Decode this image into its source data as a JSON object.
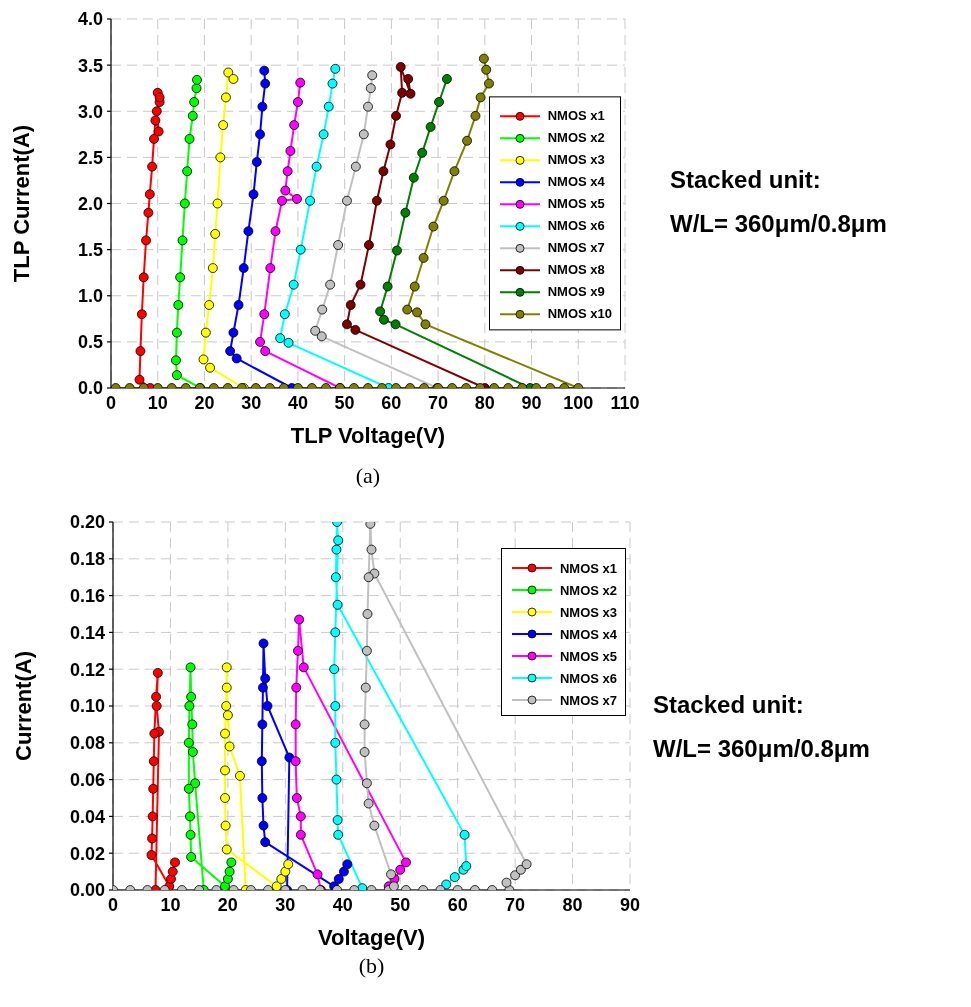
{
  "chart_data": [
    {
      "type": "line",
      "xlabel": "TLP Voltage(V)",
      "ylabel": "TLP Current(A)",
      "xlim": [
        0,
        110
      ],
      "xticks": [
        0,
        10,
        20,
        30,
        40,
        50,
        60,
        70,
        80,
        90,
        100,
        110
      ],
      "ylim": [
        0,
        4
      ],
      "yticks": [
        {
          "value": 0,
          "label": "0.0"
        },
        {
          "value": 0.5,
          "label": "0.5"
        },
        {
          "value": 1,
          "label": "1.0"
        },
        {
          "value": 1.5,
          "label": "1.5"
        },
        {
          "value": 2,
          "label": "2.0"
        },
        {
          "value": 2.5,
          "label": "2.5"
        },
        {
          "value": 3,
          "label": "3.0"
        },
        {
          "value": 3.5,
          "label": "3.5"
        },
        {
          "value": 4,
          "label": "4.0"
        }
      ],
      "grid": true,
      "legend": "right",
      "marker": "circle",
      "line_style": "solid",
      "annotations": [
        "Stacked unit:",
        "W/L= 360μm/0.8μm",
        "(a)"
      ],
      "series": [
        {
          "name": "NMOS x1",
          "color": "#ff0000",
          "x": [
            8.4,
            6.1,
            6.3,
            6.6,
            7,
            7.5,
            8,
            8.3,
            8.8,
            9.2,
            9.5,
            10.2,
            9.8,
            10.4,
            10,
            10.4
          ],
          "values": [
            0,
            0.09,
            0.4,
            0.8,
            1.2,
            1.6,
            1.9,
            2.1,
            2.4,
            2.7,
            2.9,
            2.78,
            3,
            3.1,
            3.2,
            3.15
          ]
        },
        {
          "name": "NMOS x2",
          "color": "#00ff00",
          "x": [
            19.1,
            14.1,
            13.9,
            14.1,
            14.4,
            14.8,
            15.3,
            15.8,
            16.3,
            16.8,
            17.5,
            17.8,
            18.3,
            18.4
          ],
          "values": [
            0,
            0.14,
            0.3,
            0.6,
            0.9,
            1.2,
            1.6,
            2,
            2.35,
            2.7,
            2.95,
            3.1,
            3.25,
            3.34
          ]
        },
        {
          "name": "NMOS x3",
          "color": "#ffff00",
          "x": [
            28.4,
            21.2,
            19.8,
            20.3,
            21,
            21.8,
            22.3,
            22.8,
            23.4,
            24,
            24.6,
            25.1,
            26.2
          ],
          "values": [
            0,
            0.22,
            0.31,
            0.6,
            0.9,
            1.3,
            1.67,
            2,
            2.5,
            2.85,
            3.15,
            3.42,
            3.35
          ]
        },
        {
          "name": "NMOS x4",
          "color": "#0000ff",
          "x": [
            38.7,
            26.9,
            25.5,
            26.2,
            27.3,
            28.4,
            29.4,
            30.5,
            31.2,
            31.9,
            32.4,
            33,
            32.8
          ],
          "values": [
            0,
            0.32,
            0.4,
            0.6,
            0.9,
            1.3,
            1.7,
            2.1,
            2.45,
            2.75,
            3.05,
            3.3,
            3.44
          ]
        },
        {
          "name": "NMOS x5",
          "color": "#ff00ff",
          "x": [
            49,
            33,
            31.9,
            32.8,
            34.1,
            35.2,
            36.6,
            39.8,
            37.3,
            37.8,
            38.4,
            39.2,
            40,
            40.5
          ],
          "values": [
            0,
            0.4,
            0.5,
            0.8,
            1.3,
            1.7,
            2.03,
            2.05,
            2.14,
            2.35,
            2.57,
            2.85,
            3.1,
            3.31
          ]
        },
        {
          "name": "NMOS x6",
          "color": "#00ffff",
          "x": [
            59.4,
            38,
            36.2,
            37.2,
            39.1,
            40.6,
            42.6,
            44,
            45.5,
            46.6,
            47.4,
            48
          ],
          "values": [
            0,
            0.49,
            0.54,
            0.8,
            1.12,
            1.5,
            2.03,
            2.4,
            2.75,
            3.05,
            3.3,
            3.46
          ]
        },
        {
          "name": "NMOS x7",
          "color": "#c0c0c0",
          "x": [
            69.8,
            45.1,
            43.7,
            45.2,
            46.9,
            48.6,
            50.5,
            52.4,
            54.1,
            55,
            55.6,
            55.9
          ],
          "values": [
            0,
            0.56,
            0.62,
            0.85,
            1.12,
            1.55,
            2.03,
            2.4,
            2.75,
            3.05,
            3.25,
            3.39
          ]
        },
        {
          "name": "NMOS x8",
          "color": "#800000",
          "x": [
            80,
            52.3,
            50.5,
            51.3,
            53.4,
            55.2,
            56.9,
            58.3,
            59.8,
            61,
            62.3,
            62,
            64.1,
            63.6
          ],
          "values": [
            0,
            0.63,
            0.69,
            0.9,
            1.12,
            1.55,
            2.03,
            2.35,
            2.64,
            2.95,
            3.2,
            3.48,
            3.19,
            3.35
          ]
        },
        {
          "name": "NMOS x9",
          "color": "#008000",
          "x": [
            89.7,
            60.9,
            58.4,
            57.6,
            59.2,
            61.2,
            63,
            64.8,
            66.6,
            68.4,
            70.2,
            71.9
          ],
          "values": [
            0,
            0.69,
            0.74,
            0.83,
            1.1,
            1.49,
            1.9,
            2.28,
            2.55,
            2.83,
            3.1,
            3.35
          ]
        },
        {
          "name": "NMOS x10",
          "color": "#808000",
          "x": [
            1,
            4,
            7,
            10,
            13,
            16,
            19,
            22,
            25,
            28,
            31,
            34,
            37,
            40,
            43,
            46,
            49,
            52,
            55,
            58,
            61,
            64,
            67,
            70,
            73,
            76,
            79,
            82,
            85,
            88,
            91,
            94,
            97,
            100,
            67.3,
            65.5,
            63.4,
            65,
            66.9,
            69,
            71.2,
            73.5,
            76.2,
            78,
            79.1,
            80.9,
            80.3,
            79.8
          ],
          "values": [
            0,
            0,
            0,
            0,
            0,
            0,
            0,
            0,
            0,
            0,
            0,
            0,
            0,
            0,
            0,
            0,
            0,
            0,
            0,
            0,
            0,
            0,
            0,
            0,
            0,
            0,
            0,
            0,
            0,
            0,
            0,
            0,
            0,
            0,
            0.69,
            0.82,
            0.85,
            1.1,
            1.41,
            1.75,
            2.03,
            2.35,
            2.68,
            2.95,
            3.15,
            3.3,
            3.45,
            3.57
          ]
        }
      ]
    },
    {
      "type": "line",
      "xlabel": "Voltage(V)",
      "ylabel": "Current(A)",
      "xlim": [
        0,
        90
      ],
      "xticks": [
        0,
        10,
        20,
        30,
        40,
        50,
        60,
        70,
        80,
        90
      ],
      "ylim": [
        0,
        0.2
      ],
      "yticks": [
        {
          "value": 0,
          "label": "0.00"
        },
        {
          "value": 0.02,
          "label": "0.02"
        },
        {
          "value": 0.04,
          "label": "0.04"
        },
        {
          "value": 0.06,
          "label": "0.06"
        },
        {
          "value": 0.08,
          "label": "0.08"
        },
        {
          "value": 0.1,
          "label": "0.10"
        },
        {
          "value": 0.12,
          "label": "0.12"
        },
        {
          "value": 0.14,
          "label": "0.14"
        },
        {
          "value": 0.16,
          "label": "0.16"
        },
        {
          "value": 0.18,
          "label": "0.18"
        },
        {
          "value": 0.2,
          "label": "0.20"
        }
      ],
      "grid": true,
      "legend": "top right",
      "marker": "circle",
      "line_style": "solid",
      "annotations": [
        "Stacked unit:",
        "W/L= 360μm/0.8μm",
        "(b)"
      ],
      "series": [
        {
          "name": "NMOS x1",
          "color": "#ff0000",
          "x": [
            7.4,
            8,
            7.6,
            7.8,
            7.5,
            7.2,
            7.1,
            7,
            6.9,
            6.8,
            6.7,
            9.8,
            10.1,
            10.4,
            10.8
          ],
          "values": [
            0,
            0.086,
            0.1,
            0.118,
            0.105,
            0.085,
            0.07,
            0.055,
            0.04,
            0.028,
            0.019,
            0.002,
            0.006,
            0.01,
            0.015
          ]
        },
        {
          "name": "NMOS x2",
          "color": "#00ff00",
          "x": [
            15.8,
            14.3,
            13.9,
            13.8,
            13.6,
            13.5,
            13.3,
            13.2,
            13.2,
            13.4,
            13.5,
            13.6,
            19.5,
            20,
            20.3,
            20.6
          ],
          "values": [
            0,
            0.058,
            0.075,
            0.09,
            0.105,
            0.121,
            0.1,
            0.08,
            0.055,
            0.04,
            0.03,
            0.018,
            0.002,
            0.006,
            0.01,
            0.015
          ]
        },
        {
          "name": "NMOS x3",
          "color": "#ffff00",
          "x": [
            23.1,
            22.1,
            20.3,
            20,
            19.8,
            19.8,
            19.7,
            19.5,
            19.5,
            19.5,
            19.6,
            19.8,
            28.5,
            29.3,
            30,
            30.5
          ],
          "values": [
            0,
            0.062,
            0.078,
            0.095,
            0.11,
            0.121,
            0.1,
            0.085,
            0.065,
            0.05,
            0.035,
            0.022,
            0.002,
            0.006,
            0.01,
            0.014
          ]
        },
        {
          "name": "NMOS x4",
          "color": "#0000ff",
          "x": [
            30.3,
            30.7,
            26.9,
            26.5,
            26.2,
            26.1,
            26,
            25.9,
            26,
            26.2,
            26.5,
            38.5,
            39.3,
            40.2,
            40.8
          ],
          "values": [
            0,
            0.072,
            0.1,
            0.115,
            0.134,
            0.11,
            0.09,
            0.07,
            0.05,
            0.035,
            0.026,
            0.002,
            0.006,
            0.01,
            0.014
          ]
        },
        {
          "name": "NMOS x5",
          "color": "#ff00ff",
          "x": [
            36.2,
            35.6,
            32.7,
            32.7,
            32,
            31.8,
            31.8,
            31.9,
            32.2,
            32.4,
            33.2,
            51,
            50,
            49,
            48
          ],
          "values": [
            0,
            0.0085,
            0.03,
            0.04,
            0.05,
            0.07,
            0.09,
            0.11,
            0.13,
            0.147,
            0.121,
            0.015,
            0.011,
            0.006,
            0.002
          ]
        },
        {
          "name": "NMOS x6",
          "color": "#00ffff",
          "x": [
            58,
            59.5,
            61,
            61.5,
            61.2,
            39.1,
            38.8,
            38.9,
            39,
            39.2,
            38.7,
            38.5,
            38.7,
            38.7,
            38.9,
            39.1,
            39.2,
            43.4
          ],
          "values": [
            0.003,
            0.007,
            0.011,
            0.013,
            0.03,
            0.155,
            0.17,
            0.185,
            0.2,
            0.19,
            0.14,
            0.12,
            0.1,
            0.08,
            0.06,
            0.038,
            0.03,
            0.001
          ]
        },
        {
          "name": "NMOS x7",
          "color": "#c0c0c0",
          "x": [
            0,
            3,
            6,
            9,
            12,
            15,
            18,
            21,
            24,
            27,
            30,
            33,
            36,
            39,
            42,
            45,
            48,
            51,
            54,
            57,
            60,
            63,
            66,
            69,
            68.5,
            70,
            71,
            72,
            45.5,
            45,
            44.8,
            44.5,
            44.3,
            44.2,
            44,
            43.8,
            43.8,
            44.2,
            44.5,
            45.5,
            48.4,
            48.9
          ],
          "values": [
            0,
            0,
            0,
            0,
            0,
            0,
            0,
            0,
            0,
            0,
            0,
            0,
            0,
            0,
            0,
            0,
            0,
            0,
            0,
            0,
            0,
            0,
            0,
            0,
            0.004,
            0.008,
            0.011,
            0.014,
            0.172,
            0.185,
            0.199,
            0.17,
            0.15,
            0.13,
            0.11,
            0.09,
            0.075,
            0.058,
            0.047,
            0.035,
            0.0085,
            0.002
          ]
        }
      ]
    }
  ]
}
